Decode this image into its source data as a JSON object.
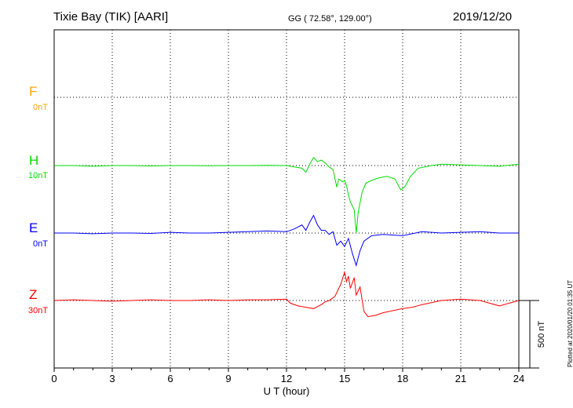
{
  "header": {
    "station": "Tixie Bay (TIK)  [AARI]",
    "coords": "GG ( 72.58°, 129.00°)",
    "date": "2019/12/20",
    "plotted": "Plotted at 2020/01/20 01:35 UT"
  },
  "colors": {
    "F": "#ffa500",
    "H": "#00dd00",
    "E": "#0000ff",
    "Z": "#ff0000"
  },
  "chart_data": {
    "type": "line",
    "xlabel": "U T (hour)",
    "xlim": [
      0,
      24
    ],
    "xticks": [
      "0",
      "3",
      "6",
      "9",
      "12",
      "15",
      "18",
      "21",
      "24"
    ],
    "scale_label": "500 nT",
    "scale_nT": 500,
    "grid": true,
    "series": [
      {
        "name": "F",
        "offset": "0nT",
        "x": [],
        "y": []
      },
      {
        "name": "H",
        "offset": "10nT",
        "x": [
          0,
          1,
          2,
          3,
          4,
          5,
          6,
          7,
          8,
          9,
          10,
          11,
          12,
          12.4,
          12.8,
          13.0,
          13.2,
          13.4,
          13.6,
          13.8,
          14.0,
          14.2,
          14.4,
          14.6,
          14.7,
          14.9,
          15.0,
          15.1,
          15.2,
          15.3,
          15.5,
          15.6,
          15.7,
          15.9,
          16.1,
          16.4,
          16.8,
          17.2,
          17.6,
          17.9,
          18.1,
          18.4,
          18.8,
          19.5,
          20,
          21,
          22,
          23,
          24
        ],
        "y": [
          0,
          0,
          -5,
          0,
          0,
          -3,
          0,
          0,
          -2,
          0,
          0,
          2,
          0,
          -10,
          -20,
          -50,
          10,
          60,
          30,
          40,
          20,
          -10,
          -30,
          -160,
          -100,
          -120,
          -110,
          -150,
          -220,
          -270,
          -330,
          -500,
          -350,
          -200,
          -130,
          -110,
          -90,
          -80,
          -100,
          -180,
          -160,
          -80,
          -20,
          0,
          10,
          5,
          0,
          -5,
          10
        ]
      },
      {
        "name": "E",
        "offset": "0nT",
        "x": [
          0,
          1,
          2,
          3,
          4,
          5,
          6,
          7,
          8,
          9,
          10,
          11,
          12,
          12.4,
          12.8,
          13.0,
          13.2,
          13.4,
          13.6,
          13.8,
          14.0,
          14.2,
          14.4,
          14.6,
          14.8,
          15.0,
          15.2,
          15.4,
          15.6,
          15.8,
          16.0,
          16.4,
          17,
          18,
          19,
          20,
          21,
          22,
          23,
          24
        ],
        "y": [
          0,
          0,
          -5,
          0,
          0,
          -3,
          5,
          0,
          0,
          5,
          10,
          15,
          10,
          30,
          60,
          20,
          80,
          130,
          60,
          20,
          20,
          -10,
          10,
          -90,
          -60,
          -100,
          -40,
          -150,
          -240,
          -130,
          -60,
          -20,
          -10,
          -20,
          10,
          0,
          5,
          10,
          0,
          0
        ]
      },
      {
        "name": "Z",
        "offset": "30nT",
        "x": [
          0,
          1,
          2,
          3,
          4,
          5,
          6,
          7,
          8,
          9,
          10,
          11,
          12,
          12.2,
          12.6,
          13.0,
          13.4,
          13.8,
          14.0,
          14.2,
          14.5,
          14.8,
          15.0,
          15.1,
          15.2,
          15.3,
          15.5,
          15.6,
          15.8,
          16.0,
          16.2,
          16.6,
          17,
          18,
          18.5,
          19,
          20,
          21,
          22,
          23,
          24
        ],
        "y": [
          0,
          5,
          0,
          -5,
          0,
          5,
          0,
          0,
          5,
          0,
          5,
          5,
          10,
          -20,
          -40,
          -50,
          -60,
          -30,
          -10,
          0,
          30,
          120,
          210,
          140,
          180,
          90,
          170,
          40,
          100,
          -80,
          -120,
          -110,
          -90,
          -60,
          -50,
          -30,
          0,
          10,
          0,
          -40,
          0
        ]
      }
    ]
  }
}
